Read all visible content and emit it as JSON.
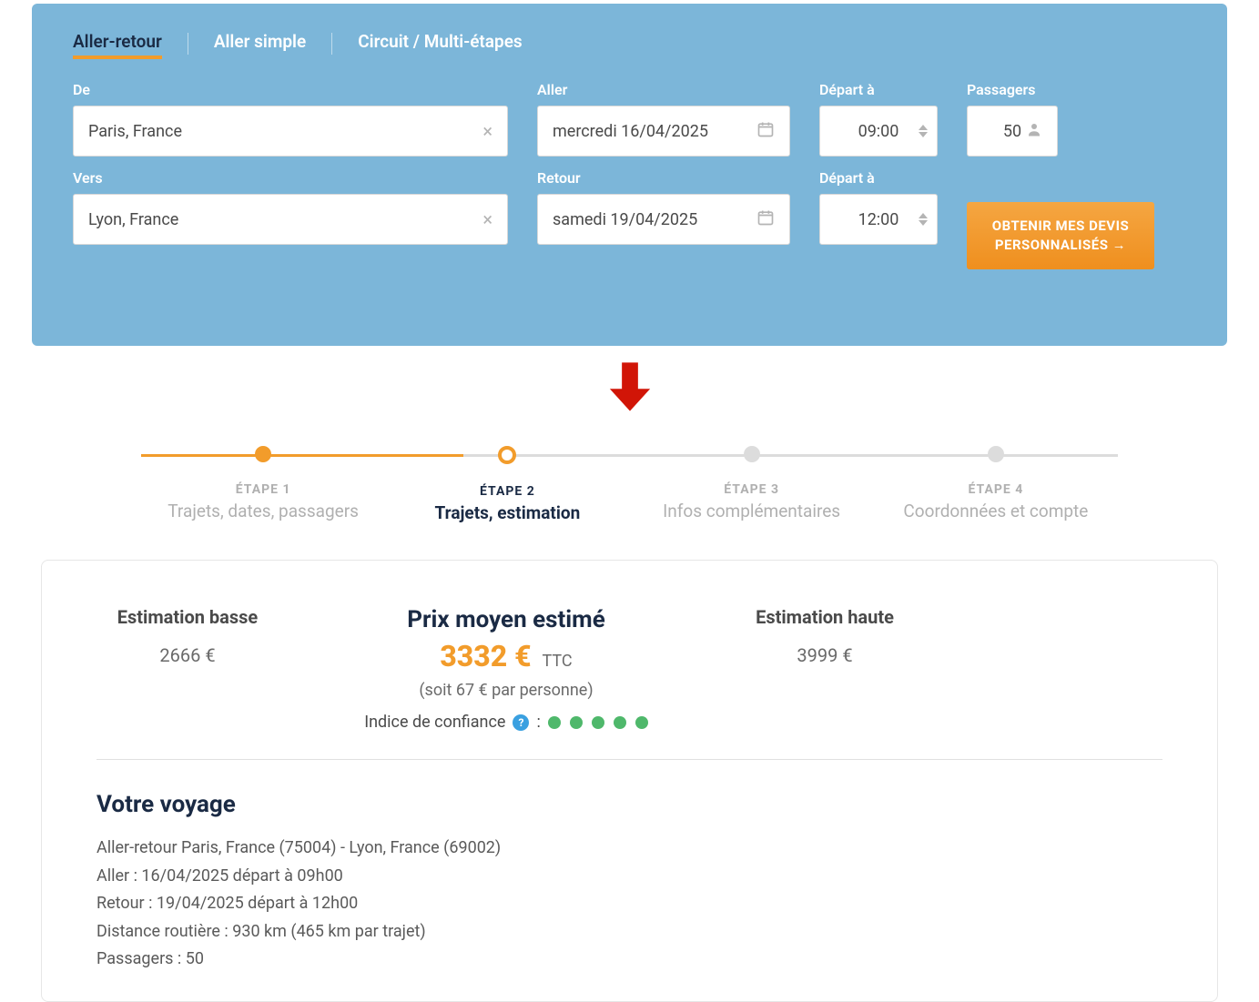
{
  "search": {
    "tabs": {
      "round_trip": "Aller-retour",
      "one_way": "Aller simple",
      "multi": "Circuit / Multi-étapes"
    },
    "labels": {
      "from": "De",
      "to": "Vers",
      "outbound": "Aller",
      "return": "Retour",
      "depart_at": "Départ à",
      "passengers": "Passagers"
    },
    "values": {
      "from": "Paris, France",
      "to": "Lyon, France",
      "outbound_date": "mercredi 16/04/2025",
      "return_date": "samedi 19/04/2025",
      "depart_time_out": "09:00",
      "depart_time_ret": "12:00",
      "passengers": "50"
    },
    "submit_label": "OBTENIR MES DEVIS PERSONNALISÉS →"
  },
  "stepper": {
    "steps": [
      {
        "num": "ÉTAPE 1",
        "label": "Trajets, dates, passagers",
        "state": "done"
      },
      {
        "num": "ÉTAPE 2",
        "label": "Trajets, estimation",
        "state": "active"
      },
      {
        "num": "ÉTAPE 3",
        "label": "Infos complémentaires",
        "state": "pending"
      },
      {
        "num": "ÉTAPE 4",
        "label": "Coordonnées et compte",
        "state": "pending"
      }
    ],
    "active_line_percent": 33
  },
  "estimates": {
    "low": {
      "title": "Estimation basse",
      "value": "2666 €"
    },
    "mid": {
      "title": "Prix moyen estimé",
      "value": "3332 €",
      "ttc": "TTC",
      "sub": "(soit 67 € par personne)",
      "confidence_label": "Indice de confiance",
      "confidence_dots": 5
    },
    "high": {
      "title": "Estimation haute",
      "value": "3999 €"
    }
  },
  "voyage": {
    "title": "Votre voyage",
    "lines": [
      "Aller-retour Paris, France (75004) - Lyon, France (69002)",
      "Aller : 16/04/2025 départ à 09h00",
      "Retour : 19/04/2025 départ à 12h00",
      "Distance routière : 930 km (465 km par trajet)",
      "Passagers : 50"
    ]
  },
  "colors": {
    "panel_bg": "#7cb6d9",
    "accent_orange": "#f29c2b",
    "price_orange": "#f29c2b",
    "dark_navy": "#1a2a44",
    "arrow_red": "#d11507",
    "confidence_green": "#4fb86b",
    "info_blue": "#3aa0e0",
    "muted_text": "#6a6a6a",
    "border": "#e6e6e6"
  }
}
